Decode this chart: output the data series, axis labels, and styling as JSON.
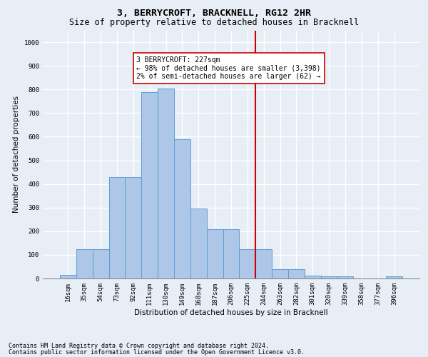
{
  "title": "3, BERRYCROFT, BRACKNELL, RG12 2HR",
  "subtitle": "Size of property relative to detached houses in Bracknell",
  "xlabel": "Distribution of detached houses by size in Bracknell",
  "ylabel": "Number of detached properties",
  "footnote1": "Contains HM Land Registry data © Crown copyright and database right 2024.",
  "footnote2": "Contains public sector information licensed under the Open Government Licence v3.0.",
  "categories": [
    "16sqm",
    "35sqm",
    "54sqm",
    "73sqm",
    "92sqm",
    "111sqm",
    "130sqm",
    "149sqm",
    "168sqm",
    "187sqm",
    "206sqm",
    "225sqm",
    "244sqm",
    "263sqm",
    "282sqm",
    "301sqm",
    "320sqm",
    "339sqm",
    "358sqm",
    "377sqm",
    "396sqm"
  ],
  "values": [
    15,
    125,
    125,
    430,
    430,
    790,
    805,
    590,
    295,
    210,
    210,
    125,
    125,
    38,
    38,
    12,
    10,
    10,
    0,
    0,
    8
  ],
  "bar_color": "#aec6e8",
  "bar_edge_color": "#5a9fd4",
  "bar_width": 1.0,
  "ylim": [
    0,
    1050
  ],
  "yticks": [
    0,
    100,
    200,
    300,
    400,
    500,
    600,
    700,
    800,
    900,
    1000
  ],
  "vline_x": 11.5,
  "vline_color": "#cc0000",
  "annotation_text": "3 BERRYCROFT: 227sqm\n← 98% of detached houses are smaller (3,398)\n2% of semi-detached houses are larger (62) →",
  "annotation_box_color": "#ffffff",
  "annotation_box_edge": "#cc0000",
  "bg_color": "#e8eef5",
  "grid_color": "#ffffff",
  "title_fontsize": 9.5,
  "subtitle_fontsize": 8.5,
  "axis_label_fontsize": 7.5,
  "tick_fontsize": 6.5,
  "annotation_fontsize": 7,
  "footnote_fontsize": 6
}
